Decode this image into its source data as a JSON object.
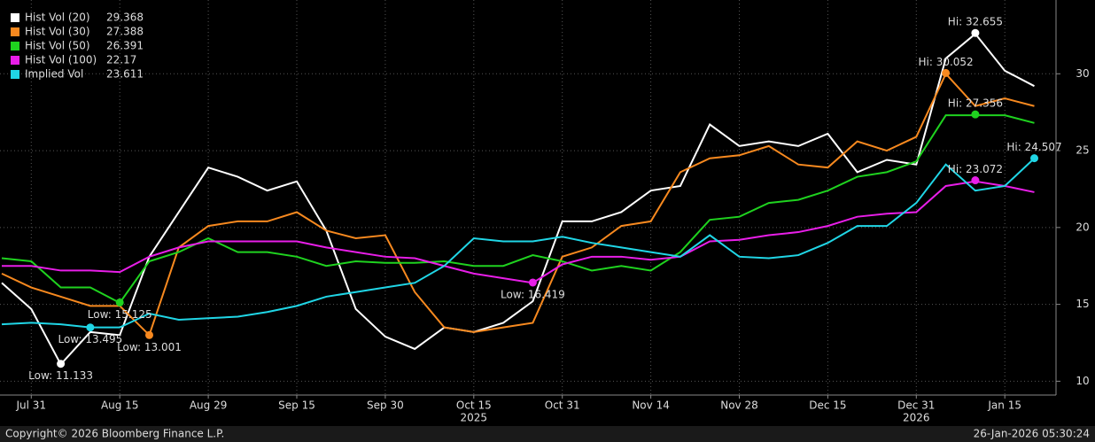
{
  "chart_data": {
    "type": "line",
    "categories": [
      null,
      "Jul 31",
      null,
      null,
      "Aug 15",
      null,
      null,
      "Aug 29",
      null,
      null,
      "Sep 15",
      null,
      null,
      "Sep 30",
      null,
      null,
      "Oct 15",
      null,
      null,
      "Oct 31",
      null,
      null,
      "Nov 14",
      null,
      null,
      "Nov 28",
      null,
      null,
      "Dec 15",
      null,
      null,
      "Dec 31",
      null,
      null,
      "Jan 15",
      null
    ],
    "year_labels": [
      "2025",
      "2026"
    ],
    "ylim": [
      9.1,
      34.8
    ],
    "yticks": [
      10,
      15,
      20,
      25,
      30
    ],
    "grid": true,
    "series": [
      {
        "name": "Hist Vol (20)",
        "color": "#ffffff",
        "last": 29.368,
        "values": [
          16.4,
          14.7,
          11.1,
          13.2,
          13.0,
          18.1,
          21.0,
          23.9,
          23.3,
          22.4,
          23.0,
          19.8,
          14.7,
          12.9,
          12.1,
          13.5,
          13.2,
          13.8,
          15.2,
          20.4,
          20.4,
          21.0,
          22.4,
          22.7,
          26.7,
          25.3,
          25.6,
          25.3,
          26.1,
          23.6,
          24.4,
          24.1,
          31.0,
          32.6,
          30.2,
          29.2
        ]
      },
      {
        "name": "Hist Vol (30)",
        "color": "#f7891f",
        "last": 27.388,
        "values": [
          17.0,
          16.1,
          15.5,
          14.9,
          14.9,
          13.0,
          18.7,
          20.1,
          20.4,
          20.4,
          21.0,
          19.8,
          19.3,
          19.5,
          15.8,
          13.5,
          13.2,
          13.5,
          13.8,
          18.1,
          18.7,
          20.1,
          20.4,
          23.6,
          24.5,
          24.7,
          25.3,
          24.1,
          23.9,
          25.6,
          25.0,
          25.9,
          30.0,
          27.9,
          28.4,
          27.9
        ]
      },
      {
        "name": "Hist Vol (50)",
        "color": "#1fd21f",
        "last": 26.391,
        "values": [
          18.0,
          17.8,
          16.1,
          16.1,
          15.1,
          17.8,
          18.4,
          19.3,
          18.4,
          18.4,
          18.1,
          17.5,
          17.8,
          17.7,
          17.7,
          17.8,
          17.5,
          17.5,
          18.2,
          17.8,
          17.2,
          17.5,
          17.2,
          18.4,
          20.5,
          20.7,
          21.6,
          21.8,
          22.4,
          23.3,
          23.6,
          24.3,
          27.3,
          27.3,
          27.3,
          26.8
        ]
      },
      {
        "name": "Hist Vol (100)",
        "color": "#e81ee8",
        "last": 22.17,
        "values": [
          17.5,
          17.5,
          17.2,
          17.2,
          17.1,
          18.1,
          18.7,
          19.1,
          19.1,
          19.1,
          19.1,
          18.7,
          18.4,
          18.1,
          18.0,
          17.5,
          17.0,
          16.7,
          16.4,
          17.6,
          18.1,
          18.1,
          17.9,
          18.1,
          19.1,
          19.2,
          19.5,
          19.7,
          20.1,
          20.7,
          20.9,
          21.0,
          22.7,
          23.0,
          22.7,
          22.3
        ]
      },
      {
        "name": "Implied Vol",
        "color": "#20d6e6",
        "last": 23.611,
        "values": [
          13.7,
          13.8,
          13.7,
          13.5,
          13.5,
          14.4,
          14.0,
          14.1,
          14.2,
          14.5,
          14.9,
          15.5,
          15.8,
          16.1,
          16.4,
          17.5,
          19.3,
          19.1,
          19.1,
          19.4,
          19.0,
          18.7,
          18.4,
          18.1,
          19.5,
          18.1,
          18.0,
          18.2,
          19.0,
          20.1,
          20.1,
          21.6,
          24.1,
          22.4,
          22.7,
          24.5
        ]
      }
    ],
    "annotations": [
      {
        "series": 0,
        "index": 2,
        "value": 11.133,
        "label": "Low: 11.133"
      },
      {
        "series": 0,
        "index": 33,
        "value": 32.655,
        "label": "Hi: 32.655"
      },
      {
        "series": 1,
        "index": 5,
        "value": 13.001,
        "label": "Low: 13.001"
      },
      {
        "series": 1,
        "index": 32,
        "value": 30.052,
        "label": "Hi: 30.052"
      },
      {
        "series": 2,
        "index": 4,
        "value": 15.125,
        "label": "Low: 15.125"
      },
      {
        "series": 2,
        "index": 33,
        "value": 27.356,
        "label": "Hi: 27.356"
      },
      {
        "series": 3,
        "index": 18,
        "value": 16.419,
        "label": "Low: 16.419"
      },
      {
        "series": 3,
        "index": 33,
        "value": 23.072,
        "label": "Hi: 23.072"
      },
      {
        "series": 4,
        "index": 3,
        "value": 13.495,
        "label": "Low: 13.495"
      },
      {
        "series": 4,
        "index": 35,
        "value": 24.507,
        "label": "Hi: 24.507"
      }
    ]
  },
  "footer": {
    "copyright": "Copyright© 2026 Bloomberg Finance L.P.",
    "timestamp": "26-Jan-2026 05:30:24"
  }
}
